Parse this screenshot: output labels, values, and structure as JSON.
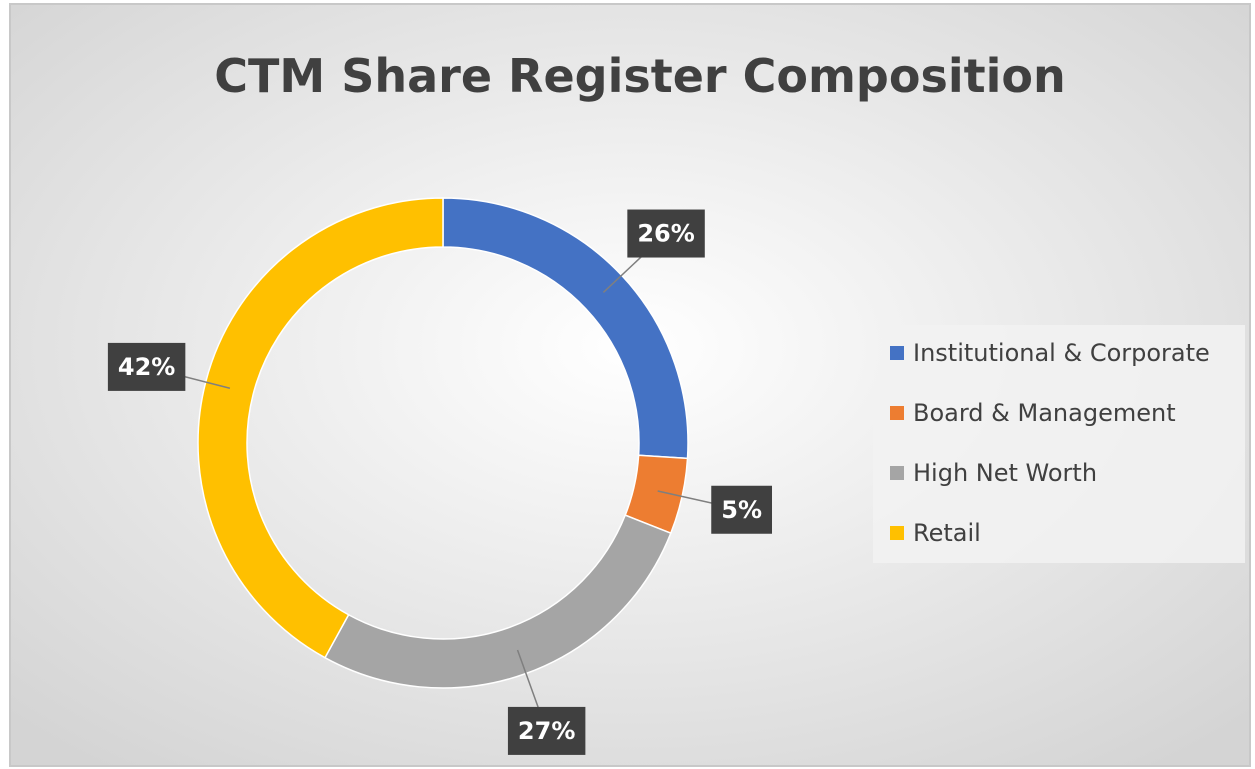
{
  "chart_data": {
    "type": "donut",
    "title": "CTM Share Register Composition",
    "categories": [
      "Institutional & Corporate",
      "Board & Management",
      "High Net Worth",
      "Retail"
    ],
    "values": [
      26,
      5,
      27,
      42
    ],
    "value_labels": [
      "26%",
      "5%",
      "27%",
      "42%"
    ],
    "colors": [
      "#4472c4",
      "#ed7d31",
      "#a5a5a5",
      "#ffc000"
    ],
    "legend": "right"
  }
}
